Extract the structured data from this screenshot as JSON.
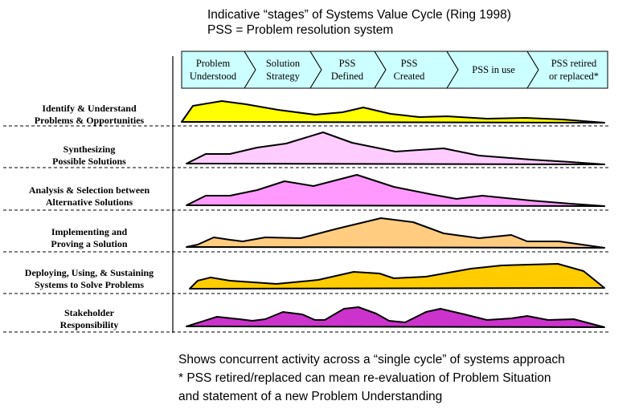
{
  "header": {
    "line1": "Indicative “stages” of Systems Value Cycle (Ring 1998)",
    "line2": "PSS = Problem resolution system"
  },
  "stages": [
    {
      "line1": "Problem",
      "line2": "Understood"
    },
    {
      "line1": "Solution",
      "line2": "Strategy"
    },
    {
      "line1": "PSS",
      "line2": "Defined"
    },
    {
      "line1": "PSS",
      "line2": "Created"
    },
    {
      "line1": "PSS in use",
      "line2": ""
    },
    {
      "line1": "PSS retired",
      "line2": "or replaced*"
    }
  ],
  "rows": [
    {
      "line1": "Identify & Understand",
      "line2": "Problems & Opportunities",
      "color": "#FFFF00"
    },
    {
      "line1": "Synthesizing",
      "line2": "Possible Solutions",
      "color": "#FFCCFF"
    },
    {
      "line1": "Analysis & Selection between",
      "line2": "Alternative Solutions",
      "color": "#FF99FF"
    },
    {
      "line1": "Implementing and",
      "line2": "Proving a Solution",
      "color": "#FFCC80"
    },
    {
      "line1": "Deploying, Using, & Sustaining",
      "line2": "Systems to Solve Problems",
      "color": "#FFCC00"
    },
    {
      "line1": "Stakeholder",
      "line2": "Responsibility",
      "color": "#CC33CC"
    }
  ],
  "colors": {
    "stage_fill": "#CCFFFF",
    "outline": "#000000"
  },
  "footer": {
    "line1": "Shows concurrent activity across a “single cycle” of systems approach",
    "line2": "* PSS retired/replaced can mean re-evaluation of Problem Situation",
    "line3": "and statement of a new Problem Understanding"
  }
}
